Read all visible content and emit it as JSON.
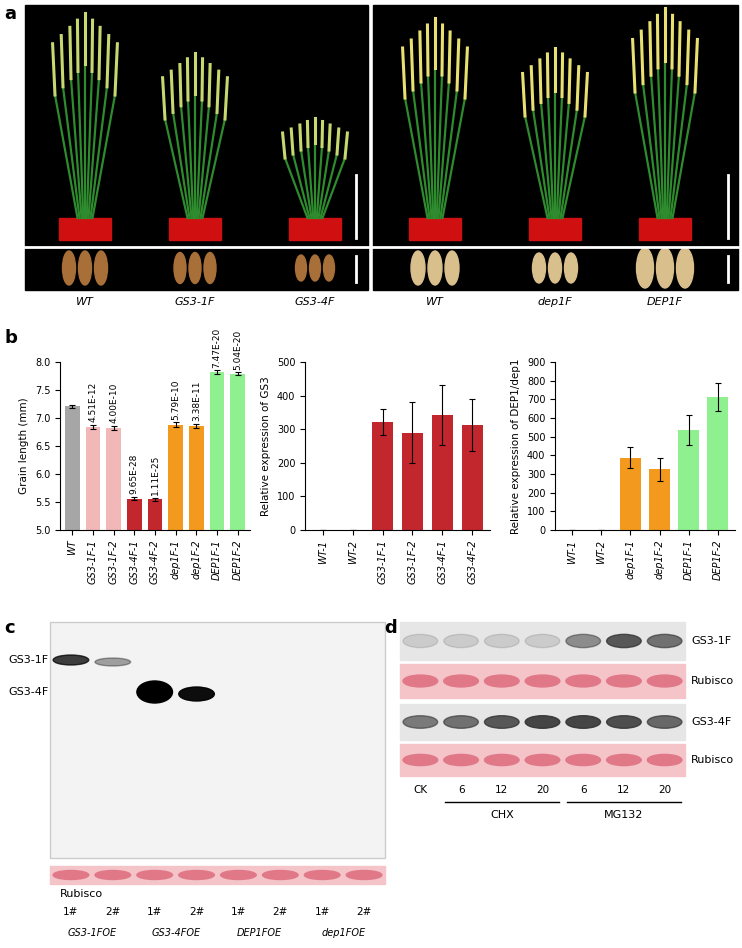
{
  "panel_labels": [
    "a",
    "b",
    "c",
    "d"
  ],
  "photos": {
    "left": [
      "WT",
      "GS3-1F",
      "GS3-4F"
    ],
    "right": [
      "WT",
      "dep1F",
      "DEP1F"
    ]
  },
  "chart_data": [
    {
      "type": "bar",
      "y_label": "Grain length (mm)",
      "categories": [
        "WT",
        "GS3-1F-1",
        "GS3-1F-2",
        "GS3-4F-1",
        "GS3-4F-2",
        "dep1F-1",
        "dep1F-2",
        "DEP1F-1",
        "DEP1F-2"
      ],
      "values": [
        7.21,
        6.84,
        6.82,
        5.56,
        5.55,
        6.88,
        6.86,
        7.82,
        7.79
      ],
      "errors": [
        0.03,
        0.04,
        0.04,
        0.03,
        0.03,
        0.04,
        0.04,
        0.03,
        0.03
      ],
      "p_values": [
        null,
        "4.51E-12",
        "4.00E-10",
        "9.65E-28",
        "1.11E-25",
        "5.79E-10",
        "3.38E-11",
        "7.47E-20",
        "5.04E-20"
      ],
      "colors": [
        "#a6a6a6",
        "#f2b8b8",
        "#f2b8b8",
        "#c1272d",
        "#c1272d",
        "#f39a1e",
        "#f39a1e",
        "#8ff08f",
        "#8ff08f"
      ],
      "ylim": [
        5.0,
        8.0
      ],
      "yticks": [
        {
          "value": 5,
          "label": "5.0"
        },
        {
          "value": 5.5,
          "label": "5.5"
        },
        {
          "value": 6,
          "label": "6.0"
        },
        {
          "value": 6.5,
          "label": "6.5"
        },
        {
          "value": 7,
          "label": "7.0"
        },
        {
          "value": 7.5,
          "label": "7.5"
        },
        {
          "value": 8,
          "label": "8.0"
        }
      ]
    },
    {
      "type": "bar",
      "y_label": "Relative expression of GS3",
      "categories": [
        "WT-1",
        "WT-2",
        "GS3-1F-1",
        "GS3-1F-2",
        "GS3-4F-1",
        "GS3-4F-2"
      ],
      "values": [
        1,
        1,
        322,
        290,
        342,
        313
      ],
      "errors": [
        0.2,
        0.2,
        38,
        92,
        90,
        77
      ],
      "colors": [
        "#a6a6a6",
        "#a6a6a6",
        "#c1272d",
        "#c1272d",
        "#c1272d",
        "#c1272d"
      ],
      "ylim": [
        0,
        500
      ],
      "yticks": [
        0,
        100,
        200,
        300,
        400,
        500
      ]
    },
    {
      "type": "bar",
      "y_label": "Relative expression of DEP1/dep1",
      "categories": [
        "WT-1",
        "WT-2",
        "dep1F-1",
        "dep1F-2",
        "DEP1F-1",
        "DEP1F-2"
      ],
      "values": [
        1,
        1,
        388,
        325,
        535,
        715
      ],
      "errors": [
        0.2,
        0.2,
        58,
        60,
        80,
        75
      ],
      "colors": [
        "#a6a6a6",
        "#a6a6a6",
        "#f39a1e",
        "#f39a1e",
        "#8ff08f",
        "#8ff08f"
      ],
      "ylim": [
        0,
        900
      ],
      "yticks": [
        0,
        100,
        200,
        300,
        400,
        500,
        600,
        700,
        800,
        900
      ]
    }
  ],
  "blot_c": {
    "bands": [
      "GS3-1F",
      "GS3-4F"
    ],
    "loading": "Rubisco",
    "lanes": [
      "1#",
      "2#",
      "1#",
      "2#",
      "1#",
      "2#",
      "1#",
      "2#"
    ],
    "groups": [
      "GS3-1FOE",
      "GS3-4FOE",
      "DEP1FOE",
      "dep1FOE"
    ]
  },
  "blot_d": {
    "rows": [
      "GS3-1F",
      "Rubisco",
      "GS3-4F",
      "Rubisco"
    ],
    "lanes": [
      "CK",
      "6",
      "12",
      "20",
      "6",
      "12",
      "20"
    ],
    "treatments": [
      "CHX",
      "MG132"
    ]
  }
}
